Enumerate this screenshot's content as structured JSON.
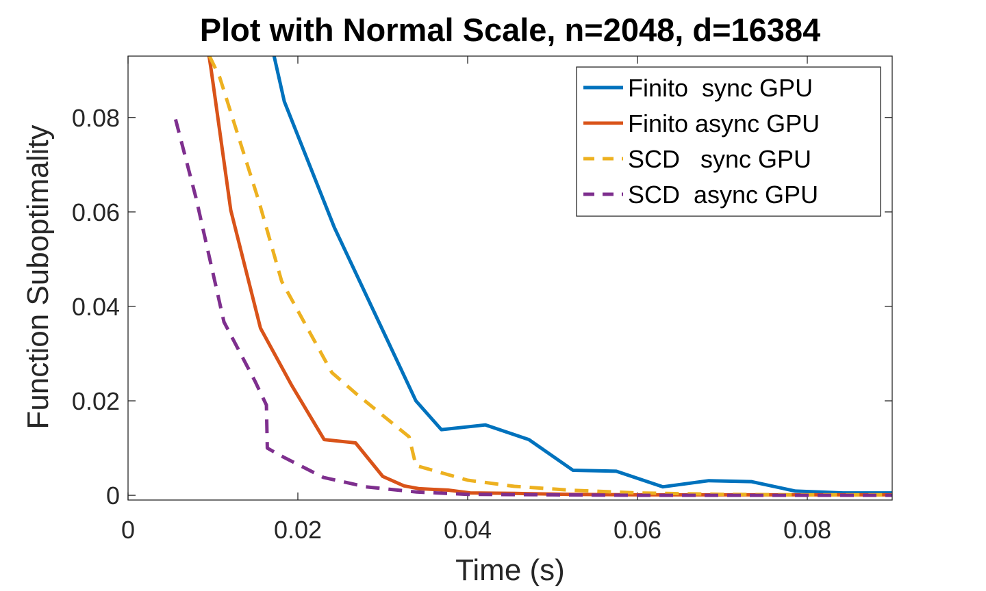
{
  "chart_data": {
    "type": "line",
    "title": "Plot with Normal Scale, n=2048, d=16384",
    "xlabel": "Time (s)",
    "ylabel": "Function Suboptimality",
    "xlim": [
      0,
      0.09
    ],
    "ylim": [
      -0.001,
      0.093
    ],
    "xticks": [
      0,
      0.02,
      0.04,
      0.06,
      0.08
    ],
    "xtick_labels": [
      "0",
      "0.02",
      "0.04",
      "0.06",
      "0.08"
    ],
    "yticks": [
      0,
      0.02,
      0.04,
      0.06,
      0.08
    ],
    "ytick_labels": [
      "0",
      "0.02",
      "0.04",
      "0.06",
      "0.08"
    ],
    "grid": false,
    "legend_position": "top-right",
    "series": [
      {
        "name": "Finito  sync GPU",
        "color": "#0072BD",
        "dash": "solid",
        "x": [
          0.0156,
          0.0172,
          0.0184,
          0.0243,
          0.0304,
          0.0339,
          0.0369,
          0.0421,
          0.0472,
          0.0524,
          0.0575,
          0.063,
          0.0684,
          0.0734,
          0.0786,
          0.0842,
          0.09
        ],
        "y": [
          0.105,
          0.093,
          0.0834,
          0.0567,
          0.0334,
          0.02,
          0.0139,
          0.0149,
          0.0118,
          0.0053,
          0.0051,
          0.0018,
          0.0031,
          0.0029,
          0.0009,
          0.0005,
          0.0005
        ]
      },
      {
        "name": "Finito async GPU",
        "color": "#D95319",
        "dash": "solid",
        "x": [
          0.0092,
          0.0098,
          0.0121,
          0.0156,
          0.0193,
          0.0231,
          0.0268,
          0.03,
          0.031,
          0.0325,
          0.0343,
          0.0377,
          0.0403,
          0.0455,
          0.052,
          0.06,
          0.07,
          0.08,
          0.09
        ],
        "y": [
          0.097,
          0.09,
          0.0604,
          0.0354,
          0.0232,
          0.0118,
          0.0111,
          0.004,
          0.0032,
          0.002,
          0.0014,
          0.0011,
          0.0005,
          0.0004,
          0.0002,
          0.0001,
          0.0001,
          0.0001,
          0.0001
        ]
      },
      {
        "name": "SCD   sync GPU",
        "color": "#EDB120",
        "dash": "dashed",
        "x": [
          0.0096,
          0.0108,
          0.0154,
          0.0181,
          0.024,
          0.027,
          0.0331,
          0.0339,
          0.04,
          0.0455,
          0.052,
          0.06,
          0.07,
          0.08,
          0.09
        ],
        "y": [
          0.093,
          0.0885,
          0.0623,
          0.0453,
          0.026,
          0.0213,
          0.0124,
          0.0063,
          0.0032,
          0.0019,
          0.0011,
          0.0005,
          0.0002,
          0.0001,
          0.0001
        ]
      },
      {
        "name": "SCD  async GPU",
        "color": "#7E2F8E",
        "dash": "dashed",
        "x": [
          0.0056,
          0.008,
          0.0113,
          0.015,
          0.0163,
          0.0164,
          0.0183,
          0.023,
          0.028,
          0.034,
          0.04,
          0.05,
          0.06,
          0.07,
          0.08,
          0.09
        ],
        "y": [
          0.0796,
          0.063,
          0.0367,
          0.024,
          0.0191,
          0.01,
          0.0081,
          0.0038,
          0.0018,
          0.0007,
          0.0002,
          0.0001,
          0.0,
          0.0,
          0.0,
          0.0
        ]
      }
    ]
  }
}
